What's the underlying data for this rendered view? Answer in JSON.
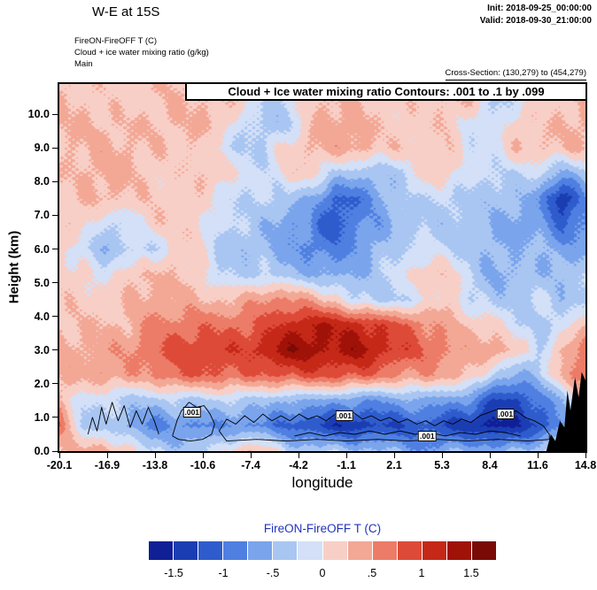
{
  "header": {
    "title": "W-E at 15S",
    "init_label": "Init: 2018-09-25_00:00:00",
    "valid_label": "Valid: 2018-09-30_21:00:00"
  },
  "subtitle": {
    "line1": "FireON-FireOFF T   (C)",
    "line2": "Cloud + ice water mixing ratio   (g/kg)",
    "line3": "Main"
  },
  "cross_section_label": "Cross-Section: (130,279) to (454,279)",
  "plot": {
    "inner_title": "Cloud + Ice water mixing ratio Contours: .001 to .1 by .099",
    "xlabel": "longitude",
    "ylabel": "Height (km)"
  },
  "colorbar": {
    "title": "FireON-FireOFF T  (C)",
    "title_color": "#2233bb",
    "tick_labels": [
      "-1.5",
      "-1",
      "-.5",
      "0",
      ".5",
      "1",
      "1.5"
    ],
    "level_min": -1.75,
    "level_step": 0.25,
    "colors": [
      "#101f96",
      "#1b3db4",
      "#2f5ccd",
      "#4f7fe0",
      "#7aa4ec",
      "#a9c6f2",
      "#d3e0f7",
      "#f8cfc6",
      "#f3a896",
      "#ec7c67",
      "#de4a38",
      "#c62818",
      "#a01208",
      "#7a0a05"
    ]
  },
  "chart_data": {
    "type": "heatmap",
    "title": "Cloud + Ice water mixing ratio Contours: .001 to .1 by .099",
    "xlabel": "longitude",
    "ylabel": "Height (km)",
    "x_ticks": [
      "-20.1",
      "-16.9",
      "-13.8",
      "-10.6",
      "-7.4",
      "-4.2",
      "-1.1",
      "2.1",
      "5.3",
      "8.4",
      "11.6",
      "14.8"
    ],
    "y_ticks": [
      "0.0",
      "1.0",
      "2.0",
      "3.0",
      "4.0",
      "5.0",
      "6.0",
      "7.0",
      "8.0",
      "9.0",
      "10.0"
    ],
    "xlim": [
      -20.1,
      14.8
    ],
    "ylim": [
      0,
      10.9
    ],
    "field_name": "FireON-FireOFF temperature difference (C)",
    "grid": {
      "x0": -20.1,
      "x1": 14.8,
      "y0": 0.0,
      "y1": 10.5,
      "nx": 24,
      "ny": 15,
      "order": "rows top (10.5 km) to bottom (0 km)",
      "values": [
        [
          0.2,
          0.2,
          0.2,
          0.2,
          0.2,
          0.2,
          0.2,
          0.2,
          0.2,
          -0.2,
          -0.2,
          0.15,
          0.2,
          0.2,
          0.2,
          0.2,
          0.2,
          0.2,
          0.2,
          -0.3,
          -0.2,
          0.2,
          0.2,
          0.2
        ],
        [
          0.2,
          0.2,
          0.25,
          0.3,
          0.3,
          0.25,
          0.2,
          0.2,
          -0.2,
          -0.3,
          -0.3,
          0.2,
          0.3,
          0.3,
          0.2,
          0.2,
          0.2,
          0.2,
          -0.2,
          -0.3,
          0.2,
          0.25,
          0.3,
          0.3
        ],
        [
          0.2,
          0.2,
          0.3,
          0.3,
          0.3,
          0.2,
          0.2,
          -0.2,
          -0.3,
          -0.2,
          0.2,
          0.3,
          0.3,
          0.3,
          0.2,
          0.2,
          0.2,
          0.2,
          -0.2,
          -0.2,
          0.2,
          0.3,
          0.3,
          0.3
        ],
        [
          0.2,
          0.2,
          0.3,
          0.3,
          0.2,
          0.2,
          0.2,
          0.2,
          -0.2,
          -0.2,
          0.2,
          0.2,
          -0.3,
          -0.5,
          -0.5,
          -0.3,
          0.2,
          0.2,
          -0.2,
          -0.3,
          -0.3,
          -0.2,
          -0.5,
          -0.3
        ],
        [
          0.2,
          0.2,
          0.2,
          0.2,
          0.2,
          0.2,
          0.2,
          -0.2,
          -0.3,
          -0.3,
          -0.3,
          -0.5,
          -1.0,
          -1.05,
          -0.7,
          -0.3,
          -0.2,
          -0.2,
          -0.3,
          -0.5,
          -0.5,
          -0.7,
          -1.55,
          -0.7
        ],
        [
          0.2,
          0.2,
          -0.3,
          -0.3,
          0.2,
          0.2,
          0.2,
          -0.2,
          -0.3,
          -0.5,
          -0.7,
          -0.7,
          -1.2,
          -0.8,
          -0.7,
          -0.5,
          -0.3,
          -0.3,
          -0.3,
          -0.5,
          -0.7,
          -0.7,
          -1.0,
          -0.7
        ],
        [
          0.2,
          -0.2,
          -0.5,
          -0.3,
          -0.4,
          0.2,
          0.2,
          -0.3,
          -0.5,
          -0.5,
          -0.7,
          -0.8,
          -0.8,
          -0.7,
          -0.5,
          -0.3,
          -0.2,
          -0.2,
          -0.3,
          -0.5,
          -0.5,
          -0.5,
          -0.7,
          -0.5
        ],
        [
          0.2,
          0.2,
          -0.2,
          0.2,
          0.2,
          0.2,
          0.2,
          -0.2,
          -0.3,
          -0.3,
          -0.5,
          -0.5,
          -0.5,
          -0.5,
          -0.3,
          -0.2,
          0.2,
          0.2,
          -0.2,
          -0.5,
          -0.5,
          -0.5,
          -0.5,
          -0.3
        ],
        [
          0.2,
          0.2,
          0.2,
          0.2,
          0.3,
          0.3,
          0.3,
          0.3,
          0.35,
          0.5,
          0.5,
          0.3,
          0.2,
          -0.2,
          -0.3,
          -0.3,
          -0.2,
          0.2,
          -0.2,
          -0.3,
          -0.3,
          -0.2,
          -0.5,
          -0.3
        ],
        [
          0.2,
          0.3,
          0.3,
          0.3,
          0.5,
          0.5,
          0.7,
          0.7,
          0.8,
          0.85,
          1.0,
          1.2,
          1.2,
          1.2,
          1.0,
          0.8,
          0.5,
          0.3,
          0.2,
          0.2,
          -0.2,
          -0.3,
          -0.3,
          0.2
        ],
        [
          0.3,
          0.3,
          0.5,
          0.5,
          0.7,
          0.8,
          0.85,
          1.0,
          1.0,
          1.2,
          1.45,
          1.3,
          1.2,
          1.45,
          1.2,
          1.0,
          0.7,
          0.5,
          0.3,
          0.5,
          0.3,
          -0.3,
          0.3,
          0.5
        ],
        [
          0.3,
          0.3,
          0.5,
          0.5,
          0.5,
          0.7,
          0.7,
          0.7,
          0.8,
          0.8,
          0.85,
          0.8,
          0.8,
          0.8,
          0.7,
          0.55,
          0.5,
          0.3,
          0.2,
          -0.3,
          -0.5,
          -0.3,
          0.3,
          0.7
        ],
        [
          0.2,
          -0.2,
          -0.2,
          -0.3,
          -0.3,
          -0.3,
          -0.4,
          -0.3,
          -0.3,
          -0.3,
          -0.5,
          -0.5,
          -0.7,
          -0.7,
          -0.7,
          -0.5,
          -0.5,
          -0.7,
          -0.8,
          -1.3,
          -1.3,
          -0.8,
          -0.5,
          0.3
        ],
        [
          0.7,
          -0.5,
          -0.3,
          -0.5,
          -0.8,
          -0.7,
          -0.9,
          -0.8,
          -0.8,
          -0.8,
          -1.0,
          -1.2,
          -1.5,
          -1.5,
          -1.3,
          -1.2,
          -1.0,
          -1.3,
          -1.5,
          -1.7,
          -1.5,
          -1.2,
          -0.7,
          0.3
        ],
        [
          0.3,
          0.3,
          0.2,
          0.2,
          -0.2,
          -0.3,
          -0.3,
          -0.2,
          0.2,
          0.2,
          -0.2,
          -0.3,
          -0.3,
          -0.5,
          -0.5,
          -0.5,
          -0.7,
          -0.5,
          -0.5,
          -0.7,
          -0.5,
          -0.3,
          0.2,
          0.2
        ]
      ]
    },
    "contours": {
      "variable": "Cloud + Ice water mixing ratio (g/kg)",
      "levels": [
        0.001,
        0.1
      ],
      "paths": [
        [
          [
            -18.2,
            0.5
          ],
          [
            -17.9,
            1.0
          ],
          [
            -17.6,
            0.6
          ],
          [
            -17.3,
            1.3
          ],
          [
            -17.0,
            0.8
          ],
          [
            -16.6,
            1.45
          ],
          [
            -16.2,
            0.9
          ],
          [
            -15.8,
            1.35
          ],
          [
            -15.4,
            0.7
          ],
          [
            -15.0,
            1.2
          ],
          [
            -14.6,
            0.8
          ],
          [
            -14.2,
            1.3
          ],
          [
            -13.8,
            0.9
          ],
          [
            -13.5,
            0.5
          ]
        ],
        [
          [
            -12.6,
            0.45
          ],
          [
            -12.3,
            0.9
          ],
          [
            -12.0,
            1.2
          ],
          [
            -11.5,
            1.45
          ],
          [
            -11.0,
            1.3
          ],
          [
            -10.5,
            1.35
          ],
          [
            -10.1,
            1.1
          ],
          [
            -9.8,
            0.8
          ],
          [
            -10.0,
            0.5
          ],
          [
            -10.6,
            0.35
          ],
          [
            -11.4,
            0.3
          ],
          [
            -12.2,
            0.35
          ],
          [
            -12.6,
            0.45
          ]
        ],
        [
          [
            -9.5,
            0.6
          ],
          [
            -9.0,
            0.95
          ],
          [
            -8.4,
            0.8
          ],
          [
            -7.8,
            1.05
          ],
          [
            -7.2,
            0.85
          ],
          [
            -6.6,
            1.1
          ],
          [
            -6.0,
            0.9
          ],
          [
            -5.4,
            1.05
          ],
          [
            -4.8,
            0.9
          ],
          [
            -4.2,
            1.1
          ],
          [
            -3.6,
            0.95
          ],
          [
            -3.0,
            1.05
          ],
          [
            -2.4,
            0.9
          ],
          [
            -1.8,
            1.1
          ],
          [
            -1.2,
            1.0
          ],
          [
            -0.6,
            1.15
          ],
          [
            0.0,
            0.95
          ],
          [
            0.6,
            1.05
          ],
          [
            1.2,
            0.9
          ],
          [
            1.8,
            1.0
          ],
          [
            2.4,
            0.85
          ],
          [
            3.0,
            0.95
          ],
          [
            3.6,
            0.8
          ],
          [
            4.2,
            0.9
          ],
          [
            4.8,
            0.75
          ],
          [
            5.4,
            0.9
          ],
          [
            6.0,
            0.8
          ],
          [
            6.6,
            0.95
          ],
          [
            7.2,
            0.85
          ],
          [
            7.8,
            1.05
          ],
          [
            8.4,
            1.15
          ],
          [
            9.0,
            1.25
          ],
          [
            9.6,
            1.1
          ],
          [
            10.2,
            1.2
          ],
          [
            10.8,
            1.0
          ],
          [
            11.4,
            0.9
          ],
          [
            12.0,
            0.75
          ],
          [
            12.4,
            0.5
          ],
          [
            12.4,
            0.35
          ],
          [
            11.0,
            0.3
          ],
          [
            9.0,
            0.35
          ],
          [
            7.0,
            0.3
          ],
          [
            5.0,
            0.35
          ],
          [
            3.0,
            0.3
          ],
          [
            1.0,
            0.35
          ],
          [
            -1.0,
            0.3
          ],
          [
            -3.0,
            0.35
          ],
          [
            -5.0,
            0.3
          ],
          [
            -7.0,
            0.35
          ],
          [
            -9.0,
            0.3
          ],
          [
            -9.5,
            0.6
          ]
        ],
        [
          [
            -4.5,
            0.45
          ],
          [
            -3.5,
            0.55
          ],
          [
            -2.5,
            0.45
          ],
          [
            -1.5,
            0.55
          ],
          [
            -0.5,
            0.5
          ],
          [
            0.5,
            0.6
          ],
          [
            1.5,
            0.5
          ],
          [
            2.5,
            0.6
          ],
          [
            3.5,
            0.5
          ],
          [
            4.5,
            0.55
          ],
          [
            5.5,
            0.45
          ],
          [
            6.5,
            0.55
          ],
          [
            7.5,
            0.5
          ],
          [
            8.5,
            0.6
          ],
          [
            9.5,
            0.55
          ],
          [
            10.5,
            0.45
          ]
        ]
      ],
      "labels": [
        {
          "x": -11.3,
          "y": 1.15,
          "text": ".001"
        },
        {
          "x": -1.2,
          "y": 1.05,
          "text": ".001"
        },
        {
          "x": 4.3,
          "y": 0.45,
          "text": ".001"
        },
        {
          "x": 9.5,
          "y": 1.1,
          "text": ".001"
        }
      ]
    },
    "terrain": [
      [
        12.2,
        0
      ],
      [
        12.5,
        0.5
      ],
      [
        12.8,
        0.3
      ],
      [
        13.1,
        0.9
      ],
      [
        13.4,
        0.7
      ],
      [
        13.6,
        1.8
      ],
      [
        13.8,
        1.2
      ],
      [
        14.1,
        2.2
      ],
      [
        14.35,
        1.6
      ],
      [
        14.55,
        2.35
      ],
      [
        14.8,
        2.1
      ],
      [
        14.8,
        0
      ]
    ]
  }
}
